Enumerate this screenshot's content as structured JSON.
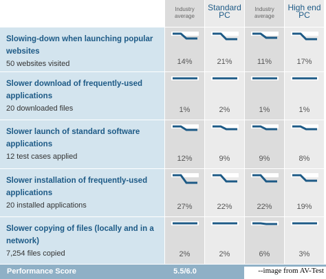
{
  "header": {
    "columns": [
      "Industry average",
      "Standard PC",
      "Industry average",
      "High end PC"
    ]
  },
  "rows": [
    {
      "title": "Slowing-down when launching popular websites",
      "subtitle": "50 websites visited",
      "values": [
        "14%",
        "21%",
        "11%",
        "17%"
      ]
    },
    {
      "title": "Slower download of frequently-used applications",
      "subtitle": "20 downloaded files",
      "values": [
        "1%",
        "2%",
        "1%",
        "1%"
      ]
    },
    {
      "title": "Slower launch of standard software applications",
      "subtitle": "12 test cases applied",
      "values": [
        "12%",
        "9%",
        "9%",
        "8%"
      ]
    },
    {
      "title": "Slower installation of frequently-used applications",
      "subtitle": "20 installed applications",
      "values": [
        "27%",
        "22%",
        "22%",
        "19%"
      ]
    },
    {
      "title": "Slower copying of files (locally and in a network)",
      "subtitle": "7,254 files copied",
      "values": [
        "2%",
        "2%",
        "6%",
        "3%"
      ]
    }
  ],
  "footer": {
    "label": "Performance Score",
    "score": "5.5/6.0",
    "credit": "--image from AV-Test"
  }
}
